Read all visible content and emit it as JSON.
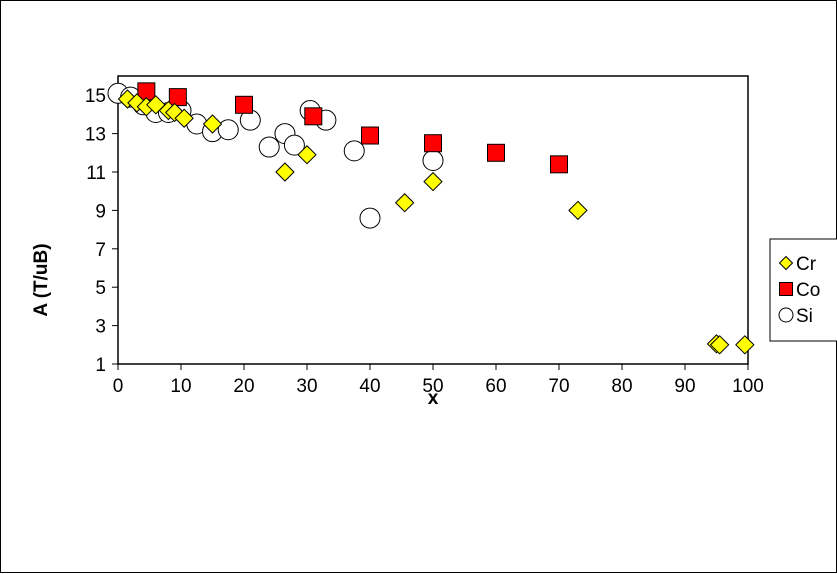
{
  "chart_data": {
    "type": "scatter",
    "title": "",
    "xlabel": "x",
    "ylabel": "A (T/uB)",
    "xlim": [
      0,
      100
    ],
    "ylim": [
      1,
      16
    ],
    "x_ticks": [
      "0",
      "10",
      "20",
      "30",
      "40",
      "50",
      "60",
      "70",
      "80",
      "90",
      "100"
    ],
    "y_ticks": [
      "1",
      "3",
      "5",
      "7",
      "9",
      "11",
      "13",
      "15"
    ],
    "grid": false,
    "legend_position": "right",
    "series": [
      {
        "name": "Cr",
        "marker": "diamond",
        "color": "#ffff00",
        "points": [
          [
            1.5,
            14.8
          ],
          [
            3,
            14.6
          ],
          [
            4.5,
            14.4
          ],
          [
            6,
            14.5
          ],
          [
            8,
            14.2
          ],
          [
            9,
            14.1
          ],
          [
            10.5,
            13.8
          ],
          [
            15,
            13.5
          ],
          [
            26.5,
            11.0
          ],
          [
            30,
            11.9
          ],
          [
            45.5,
            9.4
          ],
          [
            50,
            10.5
          ],
          [
            73,
            9.0
          ],
          [
            95,
            2.05
          ],
          [
            95.5,
            2.0
          ],
          [
            99.5,
            2.0
          ]
        ]
      },
      {
        "name": "Co",
        "marker": "square",
        "color": "#ff0000",
        "points": [
          [
            4.5,
            15.2
          ],
          [
            9.5,
            14.9
          ],
          [
            20,
            14.5
          ],
          [
            31,
            13.9
          ],
          [
            40,
            12.9
          ],
          [
            50,
            12.5
          ],
          [
            60,
            12.0
          ],
          [
            70,
            11.4
          ]
        ]
      },
      {
        "name": "Si",
        "marker": "circle",
        "color": "#ffffff",
        "points": [
          [
            0,
            15.1
          ],
          [
            2,
            14.9
          ],
          [
            4,
            14.5
          ],
          [
            6,
            14.1
          ],
          [
            8,
            14.1
          ],
          [
            10,
            14.2
          ],
          [
            12.5,
            13.5
          ],
          [
            15,
            13.1
          ],
          [
            17.5,
            13.2
          ],
          [
            21,
            13.7
          ],
          [
            24,
            12.3
          ],
          [
            26.5,
            13.0
          ],
          [
            28,
            12.4
          ],
          [
            30.5,
            14.2
          ],
          [
            33,
            13.7
          ],
          [
            37.5,
            12.1
          ],
          [
            40,
            8.6
          ],
          [
            50,
            11.6
          ]
        ]
      }
    ]
  }
}
